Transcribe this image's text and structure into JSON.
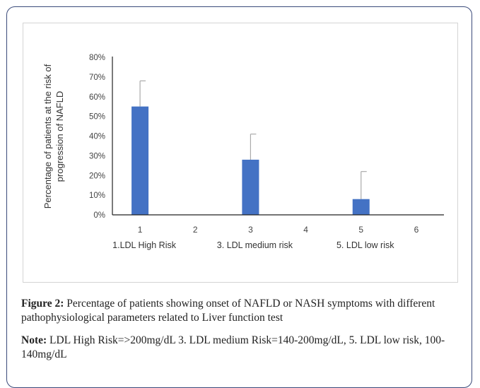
{
  "chart_data": {
    "type": "bar",
    "ylabel": "Percentage of patients at the risk of progression of NAFLD",
    "ylabel_lines": [
      "Percentage of patients at the risk of",
      "progression of NAFLD"
    ],
    "categories": [
      "1",
      "2",
      "3",
      "4",
      "5",
      "6"
    ],
    "values": [
      55,
      0,
      28,
      0,
      8,
      0
    ],
    "error_upper": [
      68,
      null,
      41,
      null,
      22,
      null
    ],
    "ylim": [
      0,
      80
    ],
    "yticks": [
      "0%",
      "10%",
      "20%",
      "30%",
      "40%",
      "50%",
      "60%",
      "70%",
      "80%"
    ],
    "group_labels": [
      "1.LDL  High Risk",
      "3. LDL medium risk",
      "5. LDL low risk"
    ],
    "bar_color": "#4472c4",
    "grid": false
  },
  "caption": {
    "figure_label": "Figure 2:",
    "figure_text": " Percentage of patients showing onset of NAFLD or NASH symptoms with different pathophysiological parameters related to Liver function test",
    "note_label": "Note:",
    "note_text": " LDL High Risk=>200mg/dL 3. LDL medium Risk=140-200mg/dL, 5. LDL low risk, 100-140mg/dL"
  }
}
